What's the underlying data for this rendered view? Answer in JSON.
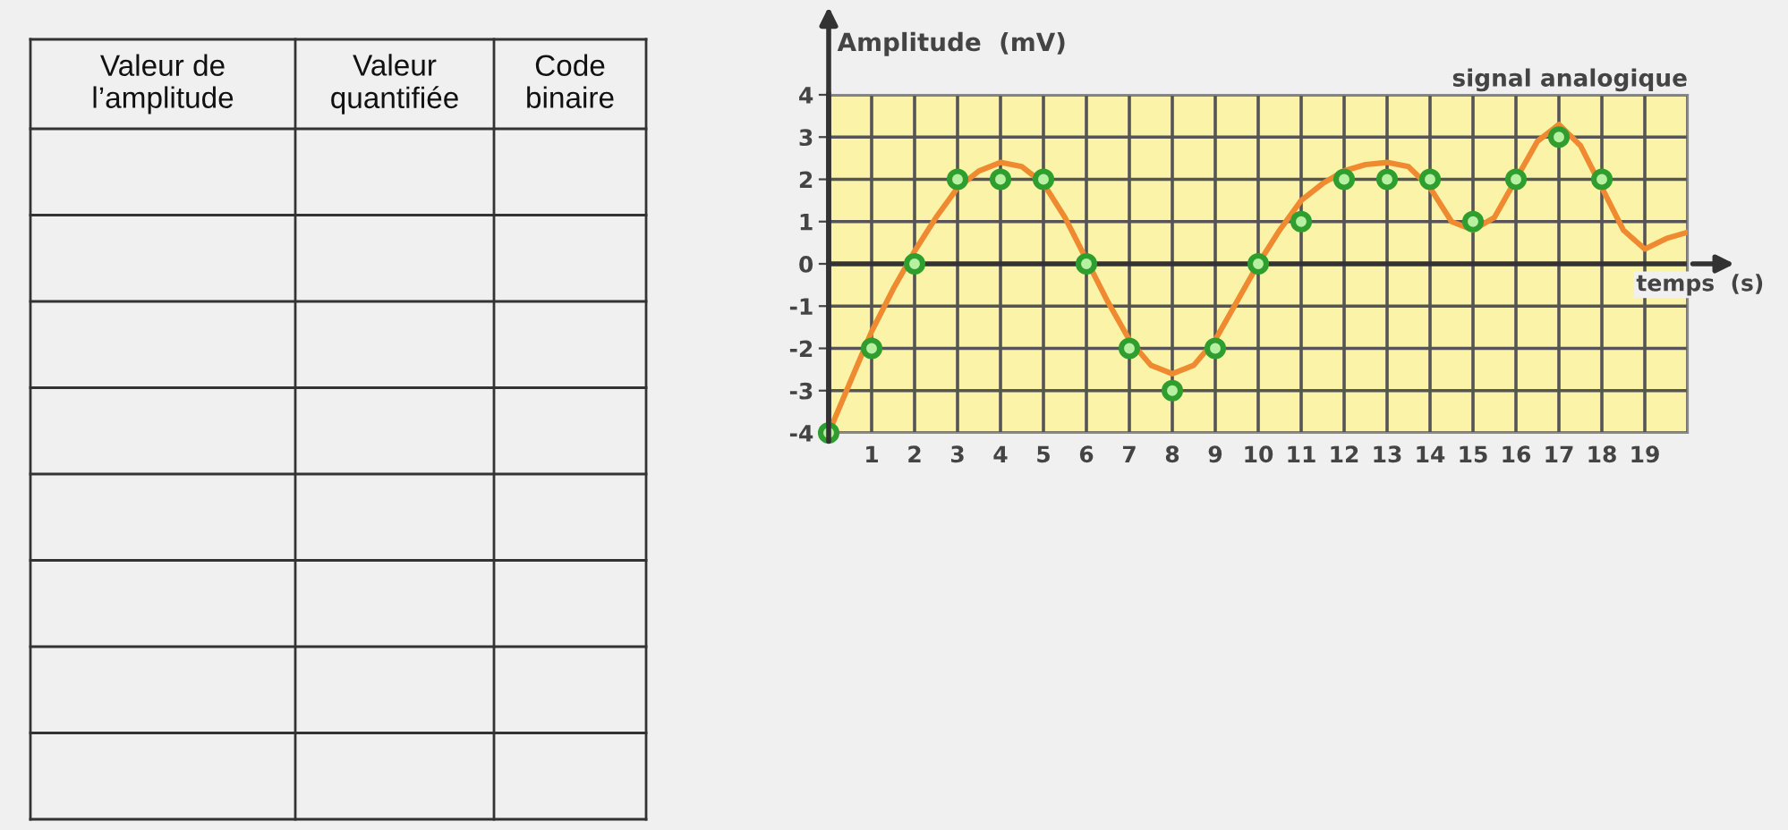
{
  "chart_data": [
    {
      "type": "other",
      "annotations": [
        "Valeur de\nl’amplitude",
        "Valeur\nquantifiée",
        "Code\nbinaire"
      ]
    },
    {
      "type": "line",
      "title": "signal analogique",
      "xlabel": "temps  (s)",
      "ylabel": "Amplitude  (mV)",
      "xlim": [
        0,
        20
      ],
      "ylim": [
        -4,
        4
      ],
      "xticks": [
        {
          "value": 0,
          "label": null
        },
        1,
        2,
        3,
        4,
        5,
        6,
        7,
        8,
        9,
        10,
        11,
        12,
        13,
        14,
        15,
        16,
        17,
        18,
        19,
        {
          "value": 20,
          "label": null
        }
      ],
      "yticks": [
        -4,
        -3,
        -2,
        -1,
        0,
        1,
        2,
        3,
        4
      ],
      "grid": true,
      "legend": false,
      "series": [
        {
          "type": "line",
          "color": "#f08a30",
          "marker": "none",
          "line_style": "solid",
          "x": [
            0,
            0.5,
            1,
            1.5,
            2,
            2.5,
            3,
            3.5,
            4,
            4.5,
            5,
            5.5,
            6,
            6.5,
            7,
            7.5,
            8,
            8.5,
            9,
            9.5,
            10,
            10.5,
            11,
            11.5,
            12,
            12.5,
            13,
            13.5,
            14,
            14.5,
            15,
            15.5,
            16,
            16.5,
            17,
            17.5,
            18,
            18.5,
            19,
            19.5,
            20
          ],
          "values": [
            -4,
            -2.8,
            -1.6,
            -0.6,
            0.3,
            1.1,
            1.8,
            2.2,
            2.4,
            2.3,
            1.9,
            1.1,
            0.1,
            -0.9,
            -1.8,
            -2.4,
            -2.6,
            -2.4,
            -1.8,
            -0.9,
            0,
            0.8,
            1.5,
            1.9,
            2.2,
            2.35,
            2.4,
            2.3,
            1.8,
            1.0,
            0.8,
            1.1,
            2.0,
            2.9,
            3.3,
            2.8,
            1.8,
            0.8,
            0.35,
            0.6,
            0.75
          ]
        },
        {
          "type": "scatter",
          "color": "#2e9e2e",
          "marker": "circle",
          "x": [
            0,
            1,
            2,
            3,
            4,
            5,
            6,
            7,
            8,
            9,
            10,
            11,
            12,
            13,
            14,
            15,
            16,
            17,
            18
          ],
          "values": [
            -4,
            -2,
            0,
            2,
            2,
            2,
            0,
            -2,
            -3,
            -2,
            0,
            1,
            2,
            2,
            2,
            1,
            2,
            3,
            2
          ]
        }
      ]
    }
  ]
}
